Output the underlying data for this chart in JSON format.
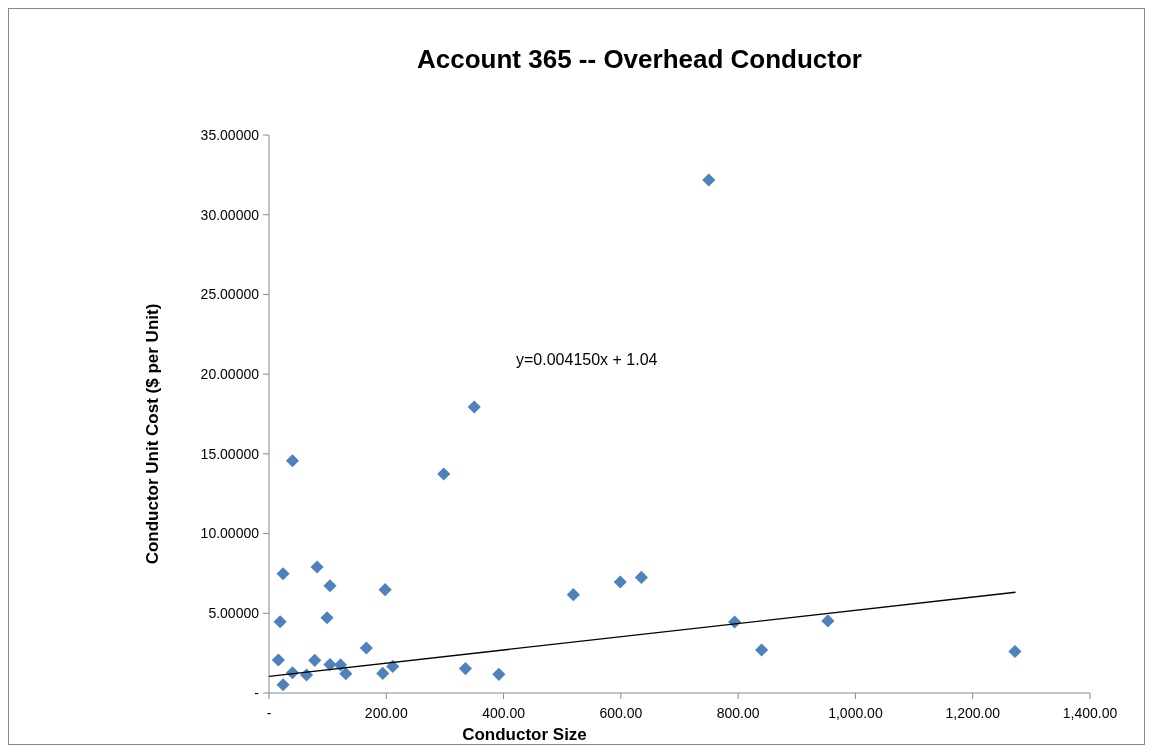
{
  "chart_data": {
    "type": "scatter",
    "title": "Account 365 -- Overhead Conductor",
    "xlabel": "Conductor Size",
    "ylabel": "Conductor Unit Cost ($ per Unit)",
    "annotations": [
      "y=0.004150x + 1.04"
    ],
    "xlim": [
      0,
      1400
    ],
    "ylim": [
      0,
      35
    ],
    "xticks": [
      {
        "value": 0,
        "label": "-"
      },
      {
        "value": 200,
        "label": "200.00"
      },
      {
        "value": 400,
        "label": "400.00"
      },
      {
        "value": 600,
        "label": "600.00"
      },
      {
        "value": 800,
        "label": "800.00"
      },
      {
        "value": 1000,
        "label": "1,000.00"
      },
      {
        "value": 1200,
        "label": "1,200.00"
      },
      {
        "value": 1400,
        "label": "1,400.00"
      }
    ],
    "yticks": [
      {
        "value": 0,
        "label": "-"
      },
      {
        "value": 5,
        "label": "5.00000"
      },
      {
        "value": 10,
        "label": "10.00000"
      },
      {
        "value": 15,
        "label": "15.00000"
      },
      {
        "value": 20,
        "label": "20.00000"
      },
      {
        "value": 25,
        "label": "25.00000"
      },
      {
        "value": 30,
        "label": "30.00000"
      },
      {
        "value": 35,
        "label": "35.00000"
      }
    ],
    "grid": false,
    "marker": "diamond",
    "series": [
      {
        "color": "#4f81bd",
        "x": [
          40,
          298,
          24,
          82,
          104,
          198,
          19,
          99,
          519,
          599,
          635,
          16,
          40,
          24,
          64,
          78,
          104,
          122,
          131,
          166,
          194,
          211,
          335,
          392,
          750,
          350,
          794,
          840,
          953,
          1272
        ],
        "values": [
          14.57,
          13.74,
          7.48,
          7.9,
          6.73,
          6.48,
          4.47,
          4.72,
          6.17,
          6.96,
          7.25,
          2.07,
          1.27,
          0.52,
          1.13,
          2.05,
          1.78,
          1.76,
          1.21,
          2.82,
          1.23,
          1.67,
          1.53,
          1.17,
          32.18,
          17.94,
          4.45,
          2.7,
          4.52,
          2.6
        ]
      },
      {
        "type": "line",
        "color": "#000000",
        "marker": "none",
        "x": [
          0,
          1273
        ],
        "values": [
          1.04,
          6.32
        ]
      }
    ]
  }
}
